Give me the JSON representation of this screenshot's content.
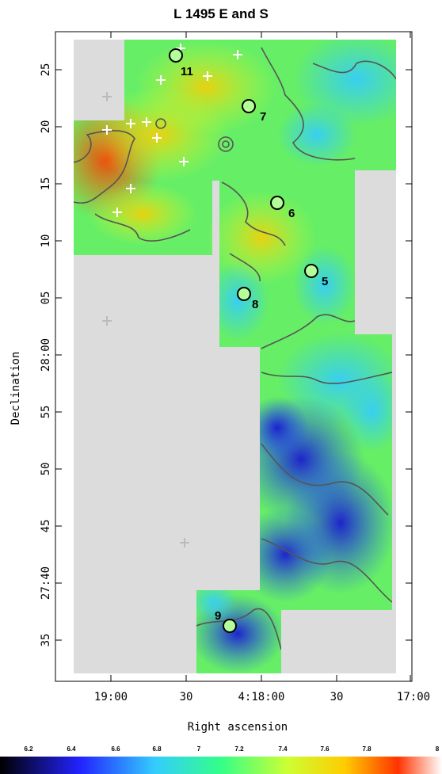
{
  "title": "L 1495 E and S",
  "x_axis": {
    "label": "Right ascension",
    "ticks": [
      "19:00",
      "30",
      "4:18:00",
      "30",
      "17:00"
    ]
  },
  "y_axis": {
    "label": "Declination",
    "ticks": [
      "25",
      "20",
      "15",
      "10",
      "05",
      "28:00",
      "55",
      "50",
      "45",
      "27:40",
      "35"
    ]
  },
  "colorbar": {
    "ticks": [
      "6.2",
      "6.4",
      "6.6",
      "6.8",
      "7",
      "7.2",
      "7.4",
      "7.6",
      "7.8",
      "8"
    ],
    "colors": [
      "#000000",
      "#1a1aff",
      "#33ccff",
      "#33ff99",
      "#ccff33",
      "#ffcc00",
      "#ff3300",
      "#ffffff"
    ]
  },
  "sources": [
    {
      "id": "11"
    },
    {
      "id": "7"
    },
    {
      "id": "6"
    },
    {
      "id": "5"
    },
    {
      "id": "8"
    },
    {
      "id": "9"
    }
  ],
  "colors": {
    "background": "#dcdcdc",
    "contour": "#555555"
  }
}
